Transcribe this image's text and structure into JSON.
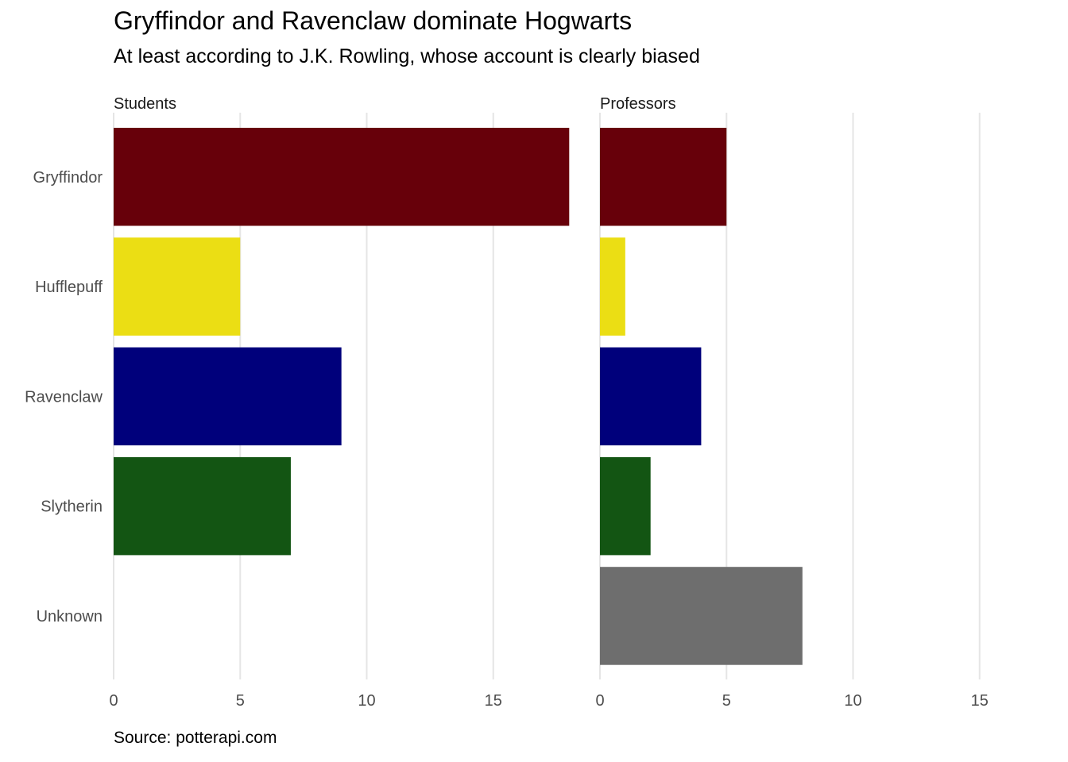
{
  "chart_data": {
    "type": "bar",
    "orientation": "horizontal",
    "title": "Gryffindor and Ravenclaw dominate Hogwarts",
    "subtitle": "At least according to J.K. Rowling, whose account is clearly biased",
    "caption": "Source: potterapi.com",
    "xlabel": "",
    "ylabel": "",
    "categories": [
      "Gryffindor",
      "Hufflepuff",
      "Ravenclaw",
      "Slytherin",
      "Unknown"
    ],
    "colors": [
      "#67000a",
      "#ebde14",
      "#00007b",
      "#135513",
      "#6e6e6e"
    ],
    "xlim": [
      0,
      18
    ],
    "xticks": [
      0,
      5,
      10,
      15
    ],
    "xtick_labels": [
      "0",
      "5",
      "10",
      "15"
    ],
    "grid": "vertical",
    "legend": "none",
    "panels": [
      {
        "label": "Students",
        "values": [
          18,
          5,
          9,
          7,
          0
        ]
      },
      {
        "label": "Professors",
        "values": [
          5,
          1,
          4,
          2,
          8
        ]
      }
    ]
  }
}
